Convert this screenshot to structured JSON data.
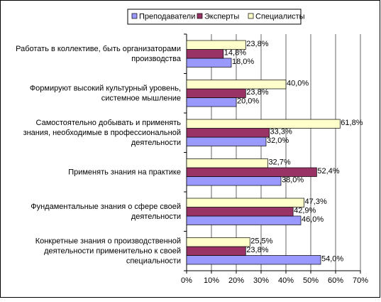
{
  "chart_data": {
    "type": "bar",
    "orientation": "horizontal",
    "categories": [
      "Работать в коллективе, быть организаторами\nпроизводства",
      "Формируют высокий культурный уровень,\nсистемное мышление",
      "Самостоятельно добывать и применять\nзнания, необходимые в профессиональной\nдеятельности",
      "Применять знания на практике",
      "Фундаментальные знания о сфере своей\nдеятельности",
      "Конкретные знания о производственной\nдеятельности применительно к своей\nспециальности"
    ],
    "series": [
      {
        "name": "Преподаватели",
        "color": "#9999ff",
        "values": [
          18.0,
          20.0,
          32.0,
          38.0,
          46.0,
          54.0
        ],
        "value_labels": [
          "18,0%",
          "20,0%",
          "32,0%",
          "38,0%",
          "46,0%",
          "54,0%"
        ]
      },
      {
        "name": "Эксперты",
        "color": "#993366",
        "values": [
          14.8,
          23.8,
          33.3,
          52.4,
          42.9,
          23.8
        ],
        "value_labels": [
          "14,8%",
          "23,8%",
          "33,3%",
          "52,4%",
          "42,9%",
          "23,8%"
        ]
      },
      {
        "name": "Специалисты",
        "color": "#ffffcc",
        "values": [
          23.8,
          40.0,
          61.8,
          32.7,
          47.3,
          25.5
        ],
        "value_labels": [
          "23,8%",
          "40,0%",
          "61,8%",
          "32,7%",
          "47,3%",
          "25,5%"
        ]
      }
    ],
    "xlim": [
      0,
      70
    ],
    "xticks": [
      {
        "value": 0,
        "label": "0%"
      },
      {
        "value": 10,
        "label": "10%"
      },
      {
        "value": 20,
        "label": "20%"
      },
      {
        "value": 30,
        "label": "30%"
      },
      {
        "value": 40,
        "label": "40%"
      },
      {
        "value": 50,
        "label": "50%"
      },
      {
        "value": 60,
        "label": "60%"
      },
      {
        "value": 70,
        "label": "70%"
      }
    ],
    "grid": true,
    "legend": "top"
  }
}
